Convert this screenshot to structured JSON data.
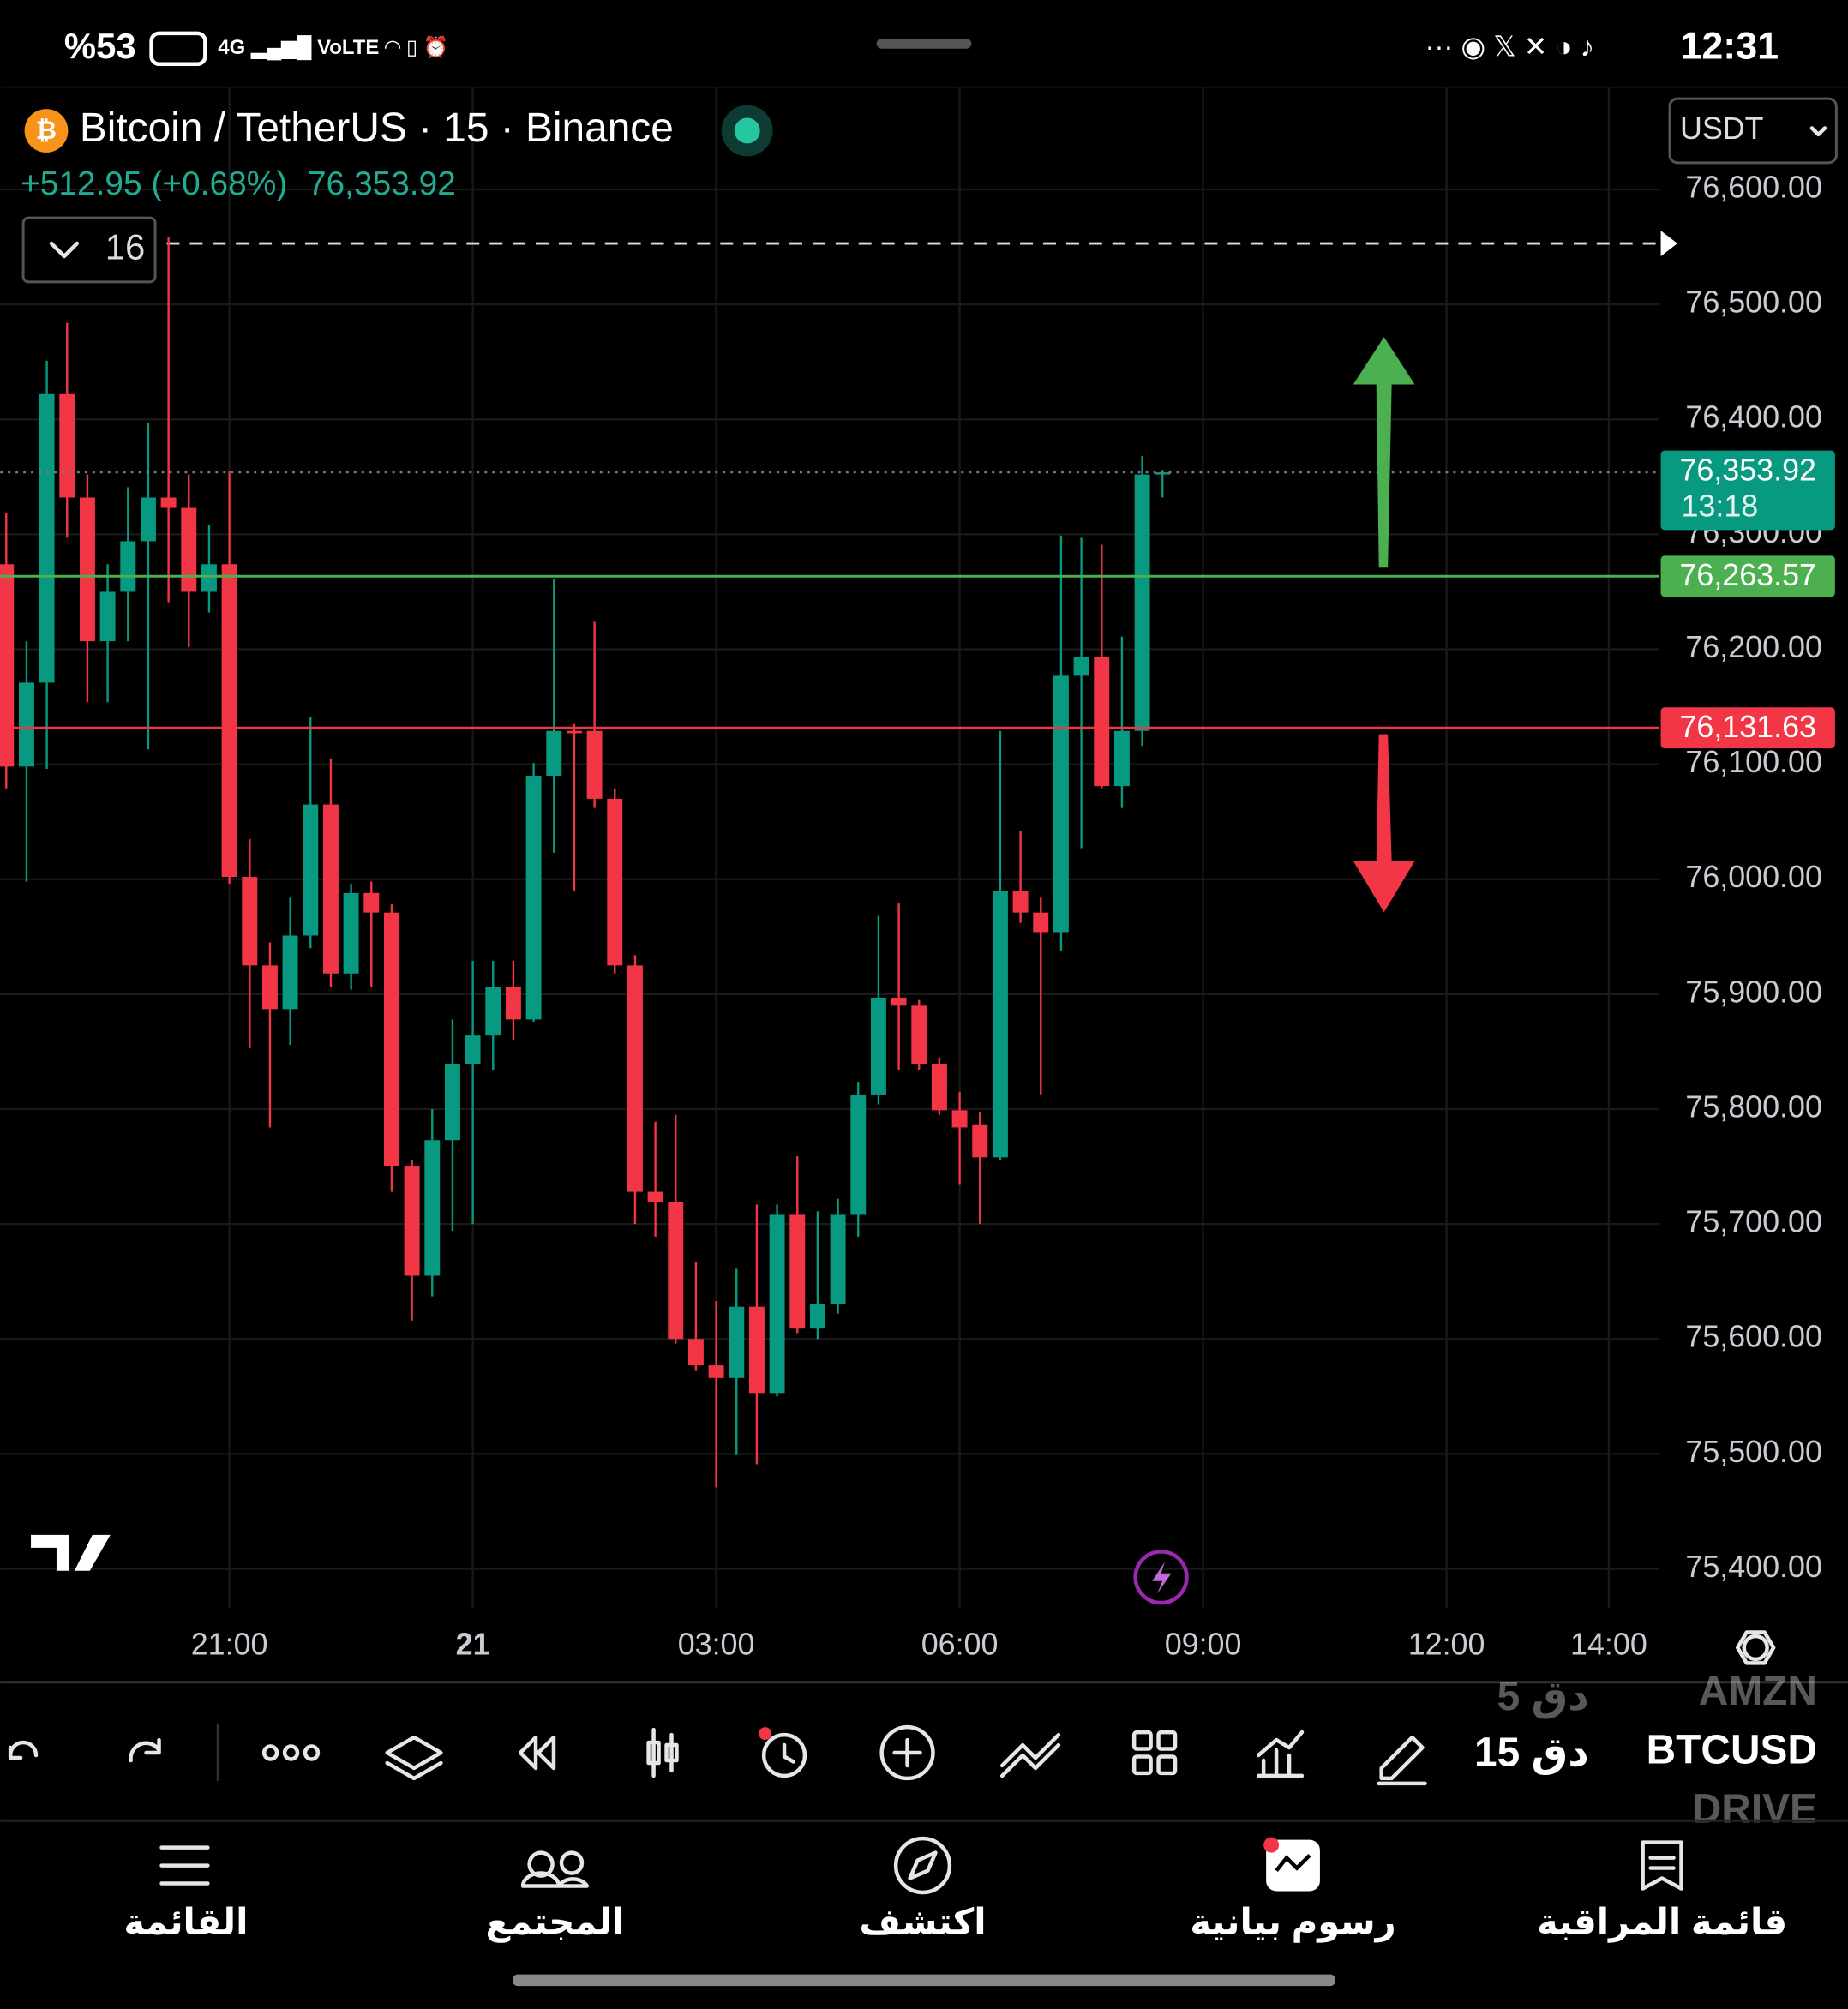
{
  "status_bar": {
    "battery": "%53",
    "time": "12:31"
  },
  "header": {
    "symbol": "Bitcoin / TetherUS · 15 · Binance",
    "change": "+512.95 (+0.68%)",
    "last": "76,353.92",
    "currency": "USDT",
    "indicator_count": "16"
  },
  "chart_data": {
    "type": "candlestick",
    "up_color": "#089981",
    "down_color": "#f23645",
    "open": [
      76274,
      76098,
      76171,
      76422,
      76332,
      76207,
      76250,
      76294,
      76332,
      76323,
      76250,
      76274,
      76002,
      75925,
      75887,
      75951,
      76065,
      75918,
      75988,
      75971,
      75750,
      75655,
      75773,
      75839,
      75864,
      75906,
      75878,
      76090,
      76129,
      76129,
      76070,
      75925,
      75728,
      75719,
      75600,
      75577,
      75566,
      75628,
      75553,
      75708,
      75609,
      75630,
      75708,
      75812,
      75897,
      75890,
      75839,
      75799,
      75786,
      75758,
      75990,
      75971,
      75954,
      76177,
      76193,
      76081,
      76129,
      76352
    ],
    "high": [
      76319,
      76207,
      76451,
      76484,
      76352,
      76274,
      76341,
      76397,
      76559,
      76352,
      76308,
      76355,
      76035,
      75945,
      75984,
      76141,
      76105,
      75996,
      75998,
      75978,
      75756,
      75800,
      75878,
      75929,
      75929,
      75929,
      76101,
      76261,
      76135,
      76224,
      76079,
      75934,
      75789,
      75795,
      75667,
      75633,
      75661,
      75717,
      75717,
      75759,
      75711,
      75722,
      75823,
      75968,
      75979,
      75895,
      75845,
      75815,
      75797,
      76129,
      76042,
      75984,
      76299,
      76297,
      76291,
      76211,
      76368,
      76356
    ],
    "low": [
      76079,
      75998,
      76096,
      76297,
      76154,
      76154,
      76207,
      76113,
      76241,
      76202,
      76232,
      75996,
      75853,
      75784,
      75856,
      75940,
      75906,
      75904,
      75906,
      75728,
      75616,
      75637,
      75694,
      75700,
      75834,
      75860,
      75876,
      76023,
      75990,
      76062,
      75918,
      75700,
      75689,
      75596,
      75572,
      75471,
      75499,
      75491,
      75550,
      75605,
      75600,
      75622,
      75689,
      75804,
      75834,
      75834,
      75795,
      75734,
      75700,
      75756,
      75962,
      75812,
      75938,
      76027,
      76079,
      76062,
      76116,
      76332
    ],
    "close": [
      76098,
      76171,
      76422,
      76332,
      76207,
      76250,
      76294,
      76332,
      76323,
      76250,
      76274,
      76002,
      75925,
      75887,
      75951,
      76065,
      75918,
      75988,
      75971,
      75750,
      75655,
      75773,
      75839,
      75864,
      75906,
      75878,
      76090,
      76129,
      76127,
      76070,
      75925,
      75728,
      75719,
      75600,
      75577,
      75566,
      75628,
      75553,
      75708,
      75609,
      75630,
      75708,
      75812,
      75897,
      75890,
      75839,
      75799,
      75784,
      75758,
      75990,
      75971,
      75954,
      76177,
      76193,
      76081,
      76129,
      76352,
      76353.92
    ],
    "ylim": [
      75366,
      76689
    ],
    "yticks": [
      {
        "value": 75400,
        "label": "75,400.00"
      },
      {
        "value": 75500,
        "label": "75,500.00"
      },
      {
        "value": 75600,
        "label": "75,600.00"
      },
      {
        "value": 75700,
        "label": "75,700.00"
      },
      {
        "value": 75800,
        "label": "75,800.00"
      },
      {
        "value": 75900,
        "label": "75,900.00"
      },
      {
        "value": 76000,
        "label": "76,000.00"
      },
      {
        "value": 76100,
        "label": "76,100.00"
      },
      {
        "value": 76200,
        "label": "76,200.00"
      },
      {
        "value": 76300,
        "label": "76,300.00"
      },
      {
        "value": 76400,
        "label": "76,400.00"
      },
      {
        "value": 76500,
        "label": "76,500.00"
      },
      {
        "value": 76600,
        "label": "76,600.00"
      }
    ],
    "xlim": [
      -0.3,
      81.5
    ],
    "xticks": [
      {
        "value": 11,
        "label": "21:00"
      },
      {
        "value": 23,
        "label": "21"
      },
      {
        "value": 35,
        "label": "03:00"
      },
      {
        "value": 47,
        "label": "06:00"
      },
      {
        "value": 59,
        "label": "09:00"
      },
      {
        "value": 71,
        "label": "12:00"
      },
      {
        "value": 79,
        "label": "14:00"
      }
    ],
    "grid": true,
    "last_price": {
      "value": 76353.92,
      "label": "76,353.92",
      "countdown": "13:18"
    },
    "levels": [
      {
        "value": 76263.57,
        "label": "76,263.57",
        "color": "#4caf50"
      },
      {
        "value": 76131.63,
        "label": "76,131.63",
        "color": "#f23645"
      }
    ],
    "dashed_level": 76553
  },
  "toolbar": {
    "symbols": [
      "AMZN",
      "BTCUSD",
      "DRIVE"
    ],
    "intervals": [
      "5 دق",
      "15 دق"
    ]
  },
  "nav": [
    "القائمة",
    "المجتمع",
    "اكتشف",
    "رسوم بيانية",
    "قائمة المراقبة"
  ]
}
